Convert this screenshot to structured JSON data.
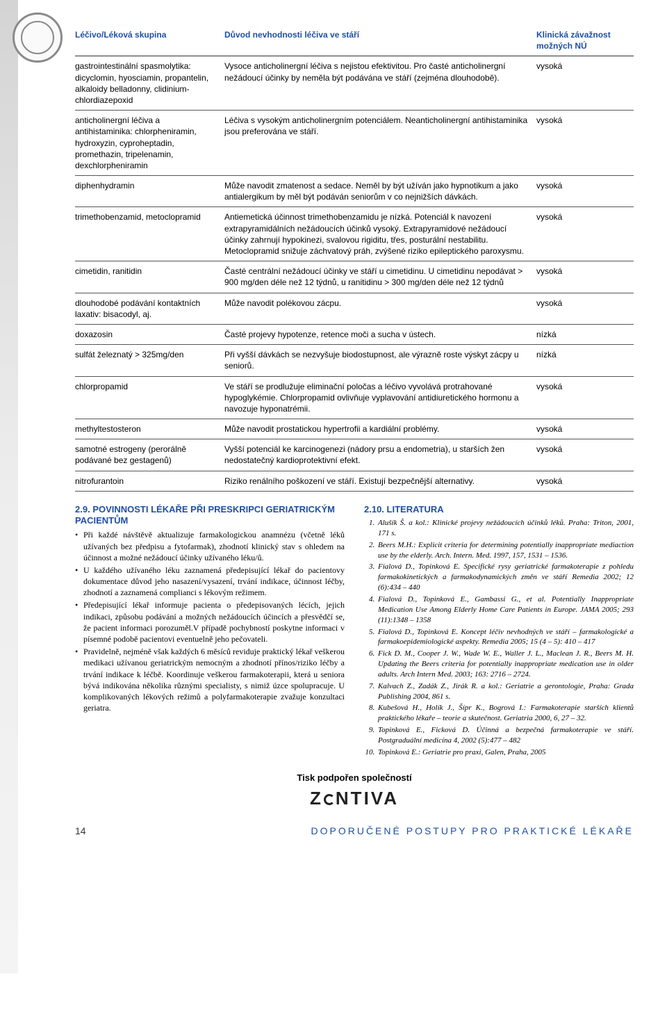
{
  "table": {
    "headers": [
      "Léčivo/Léková skupina",
      "Důvod nevhodnosti léčiva ve stáří",
      "Klinická závažnost možných NÚ"
    ],
    "rows": [
      [
        "gastrointestinální spasmolytika: dicyclomin, hyosciamin, propantelin, alkaloidy belladonny, clidinium-chlordiazepoxid",
        "Vysoce anticholinergní léčiva s nejistou efektivitou. Pro časté anticholinergní nežádoucí účinky by neměla být podávána ve stáří (zejména dlouhodobě).",
        "vysoká"
      ],
      [
        "anticholinergní léčiva a antihistaminika: chlorpheniramin, hydroxyzin, cyproheptadin, promethazin, tripelenamin, dexchlorpheniramin",
        "Léčiva s vysokým anticholinergním potenciálem. Neanticholinergní antihistaminika jsou preferována ve stáří.",
        "vysoká"
      ],
      [
        "diphenhydramin",
        "Může navodit zmatenost a sedace. Neměl by být užíván jako hypnotikum a jako antialergikum by měl být podáván seniorům v co nejnižších dávkách.",
        "vysoká"
      ],
      [
        "trimethobenzamid, metoclopramid",
        "Antiemetická účinnost trimethobenzamidu je nízká. Potenciál k navození extrapyramidálních nežádoucích účinků vysoký. Extrapyramidové nežádoucí účinky zahrnují hypokinezi, svalovou rigiditu, třes, posturální nestabilitu. Metoclopramid snižuje záchvatový práh, zvýšené riziko epileptického paroxysmu.",
        "vysoká"
      ],
      [
        "cimetidin, ranitidin",
        "Časté centrální nežádoucí účinky ve stáří u cimetidinu. U cimetidinu nepodávat > 900 mg/den déle než 12 týdnů, u ranitidinu > 300 mg/den déle než 12 týdnů",
        "vysoká"
      ],
      [
        "dlouhodobé podávání kontaktních laxativ: bisacodyl, aj.",
        "Může navodit polékovou zácpu.",
        "vysoká"
      ],
      [
        "doxazosin",
        "Časté projevy hypotenze, retence moči a sucha v ústech.",
        "nízká"
      ],
      [
        "sulfát železnatý > 325mg/den",
        "Při vyšší dávkách se nezvyšuje biodostupnost, ale výrazně roste výskyt zácpy u seniorů.",
        "nízká"
      ],
      [
        "chlorpropamid",
        "Ve stáří se prodlužuje eliminační poločas a léčivo vyvolává protrahované hypoglykémie. Chlorpropamid ovlivňuje vyplavování antidiuretického hormonu a navozuje hyponatrémii.",
        "vysoká"
      ],
      [
        "methyltestosteron",
        "Může navodit prostatickou hypertrofii a kardiální problémy.",
        "vysoká"
      ],
      [
        "samotné estrogeny (perorálně podávané bez gestagenů)",
        "Vyšší potenciál ke karcinogenezi (nádory prsu a endometria), u starších žen nedostatečný kardioprotektivní efekt.",
        "vysoká"
      ],
      [
        "nitrofurantoin",
        "Riziko renálního poškození ve stáří. Existují bezpečnější alternativy.",
        "vysoká"
      ]
    ]
  },
  "section29": {
    "number": "2.9.",
    "title": "POVINNOSTI LÉKAŘE PŘI PRESKRIPCI GERIATRICKÝM PACIENTŮM",
    "items": [
      "Při každé návštěvě aktualizuje farmakologickou anamnézu (včetně léků užívaných bez předpisu a fytofarmak), zhodnotí klinický stav s ohledem na účinnost a možné nežádoucí účinky užívaného léku/ů.",
      "U každého užívaného léku zaznamená předepisující lékař do pacientovy dokumentace důvod jeho nasazení/vysazení, trvání indikace, účinnost léčby, zhodnotí a zaznamená complianci s lékovým režimem.",
      "Předepisující lékař informuje pacienta o předepisovaných lécích, jejich indikaci, způsobu podávání a možných nežádoucích účincích a přesvědčí se, že pacient informaci porozuměl.V případě pochybností poskytne informaci v písemné podobě pacientovi eventuelně jeho pečovateli.",
      "Pravidelně, nejméně však každých 6 měsíců reviduje praktický lékař veškerou medikaci užívanou geriatrickým nemocným a zhodnotí přínos/riziko léčby a trvání indikace k léčbě. Koordinuje veškerou farmakoterapii, která u seniora bývá indikována několika různými specialisty, s nimiž úzce spolupracuje. U komplikovaných lékových režimů a polyfarmakoterapie zvažuje konzultaci geriatra."
    ]
  },
  "section210": {
    "number": "2.10.",
    "title": "LITERATURA",
    "refs": [
      "Alušík Š. a kol.: Klinické projevy nežádoucích účinků léků. Praha: Triton, 2001, 171 s.",
      "Beers M.H.: Explicit criteria for determining potentially inappropriate mediaction use by the elderly. Arch. Intern. Med. 1997, 157, 1531 – 1536.",
      "Fialová D., Topinková E. Specifické rysy geriatrické farmakoterapie z pohledu farmakokinetických a farmakodynamických změn ve stáří Remedia 2002; 12 (6):434 – 440",
      "Fialová D., Topinková E., Gambassi G., et al. Potentially Inappropriate Medication Use Among Elderly Home Care Patients in Europe. JAMA 2005; 293 (11):1348 – 1358",
      "Fialová D., Topinková E. Koncept léčiv nevhodných ve stáří – farmakologické a farmakoepidemiologické aspekty. Remedia 2005; 15 (4 – 5): 410 – 417",
      "Fick D. M., Cooper J. W., Wade W. E., Waller J. L., Maclean J. R., Beers M. H. Updating the Beers criteria for potentially inappropriate medication use in older adults. Arch Intern Med. 2003; 163: 2716 – 2724.",
      "Kalvach Z., Zadák Z., Jirák R. a kol.: Geriatrie a gerontologie, Praha: Grada Publishing 2004, 861 s.",
      "Kubešová H., Holík J., Šípr K., Bogrová I.: Farmakoterapie starších klientů praktického lékaře – teorie a skutečnost. Geriatria 2000, 6, 27 – 32.",
      "Topinková E., Ficková D. Účinná a bezpečná farmakoterapie ve stáří. Postgraduální medicína 4, 2002 (5):477 – 482",
      "Topinková E.: Geriatrie pro praxi, Galen, Praha, 2005"
    ]
  },
  "sponsor_line": "Tisk podpořen společností",
  "sponsor_brand": "ZENTIVA",
  "page_number": "14",
  "footer_title": "DOPORUČENÉ POSTUPY PRO PRAKTICKÉ LÉKAŘE",
  "colors": {
    "heading": "#1e4fa3",
    "text": "#000000",
    "band": "#d4d4d4"
  }
}
